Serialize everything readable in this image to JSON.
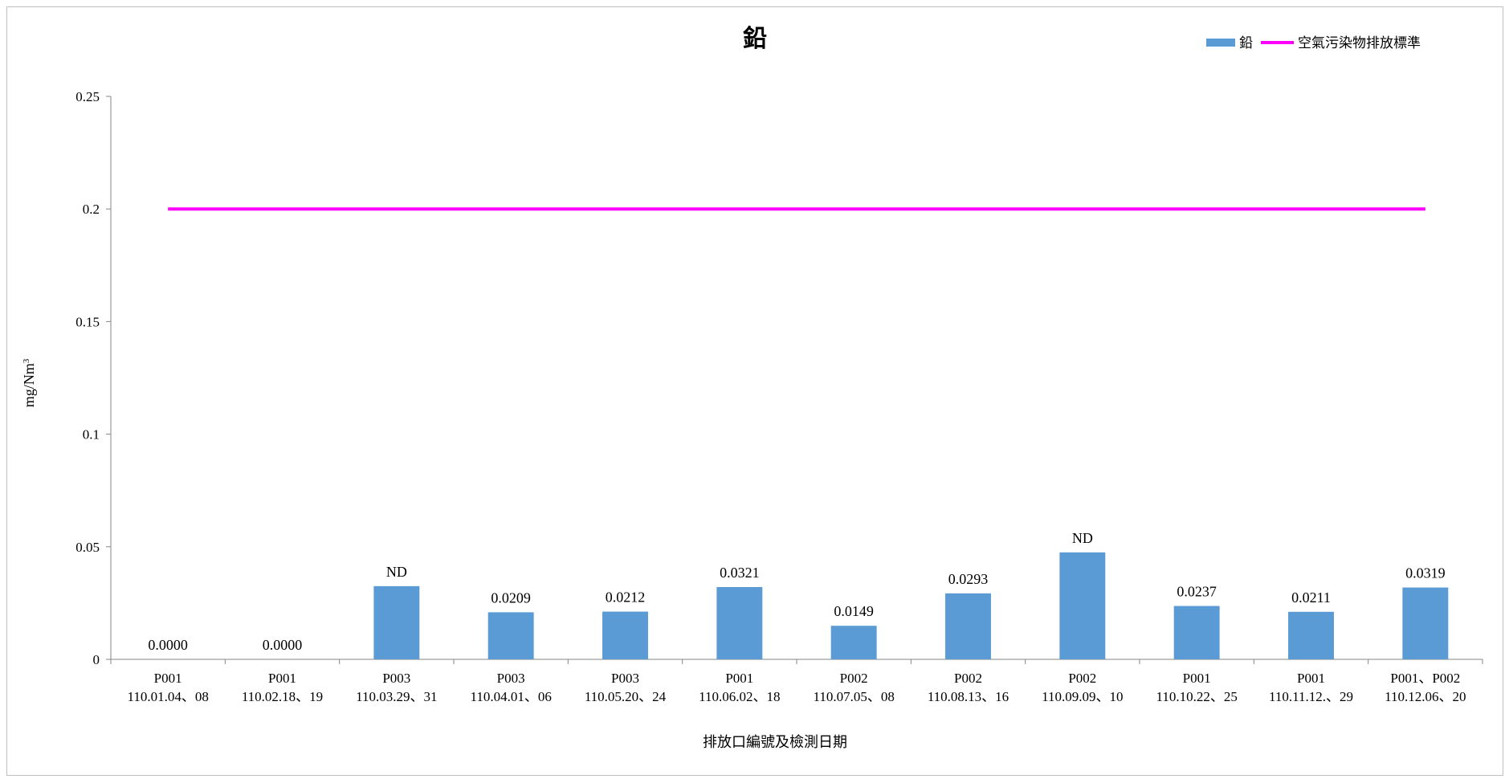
{
  "chart_data": {
    "type": "bar",
    "title": "鉛",
    "xlabel": "排放口編號及檢測日期",
    "ylabel": "mg/Nm",
    "ylabel_sup": "3",
    "ylim": [
      0,
      0.25
    ],
    "yticks": [
      "0",
      "0.05",
      "0.1",
      "0.15",
      "0.2",
      "0.25"
    ],
    "ytick_values": [
      0,
      0.05,
      0.1,
      0.15,
      0.2,
      0.25
    ],
    "grid": false,
    "legend_position": "top-right",
    "categories": [
      [
        "P001",
        "110.01.04、08"
      ],
      [
        "P001",
        "110.02.18、19"
      ],
      [
        "P003",
        "110.03.29、31"
      ],
      [
        "P003",
        "110.04.01、06"
      ],
      [
        "P003",
        "110.05.20、24"
      ],
      [
        "P001",
        "110.06.02、18"
      ],
      [
        "P002",
        "110.07.05、08"
      ],
      [
        "P002",
        "110.08.13、16"
      ],
      [
        "P002",
        "110.09.09、10"
      ],
      [
        "P001",
        "110.10.22、25"
      ],
      [
        "P001",
        "110.11.12.、29"
      ],
      [
        "P001、P002",
        "110.12.06、20"
      ]
    ],
    "series": [
      {
        "name": "鉛",
        "kind": "bar",
        "color": "#5b9bd5",
        "values": [
          0,
          0,
          0.0325,
          0.0209,
          0.0212,
          0.0321,
          0.0149,
          0.0293,
          0.0475,
          0.0237,
          0.0211,
          0.0319
        ],
        "labels": [
          "0.0000",
          "0.0000",
          "ND",
          "0.0209",
          "0.0212",
          "0.0321",
          "0.0149",
          "0.0293",
          "ND",
          "0.0237",
          "0.0211",
          "0.0319"
        ]
      },
      {
        "name": "空氣污染物排放標準",
        "kind": "line",
        "color": "#ff00ff",
        "values": [
          0.2,
          0.2,
          0.2,
          0.2,
          0.2,
          0.2,
          0.2,
          0.2,
          0.2,
          0.2,
          0.2,
          0.2
        ]
      }
    ]
  }
}
